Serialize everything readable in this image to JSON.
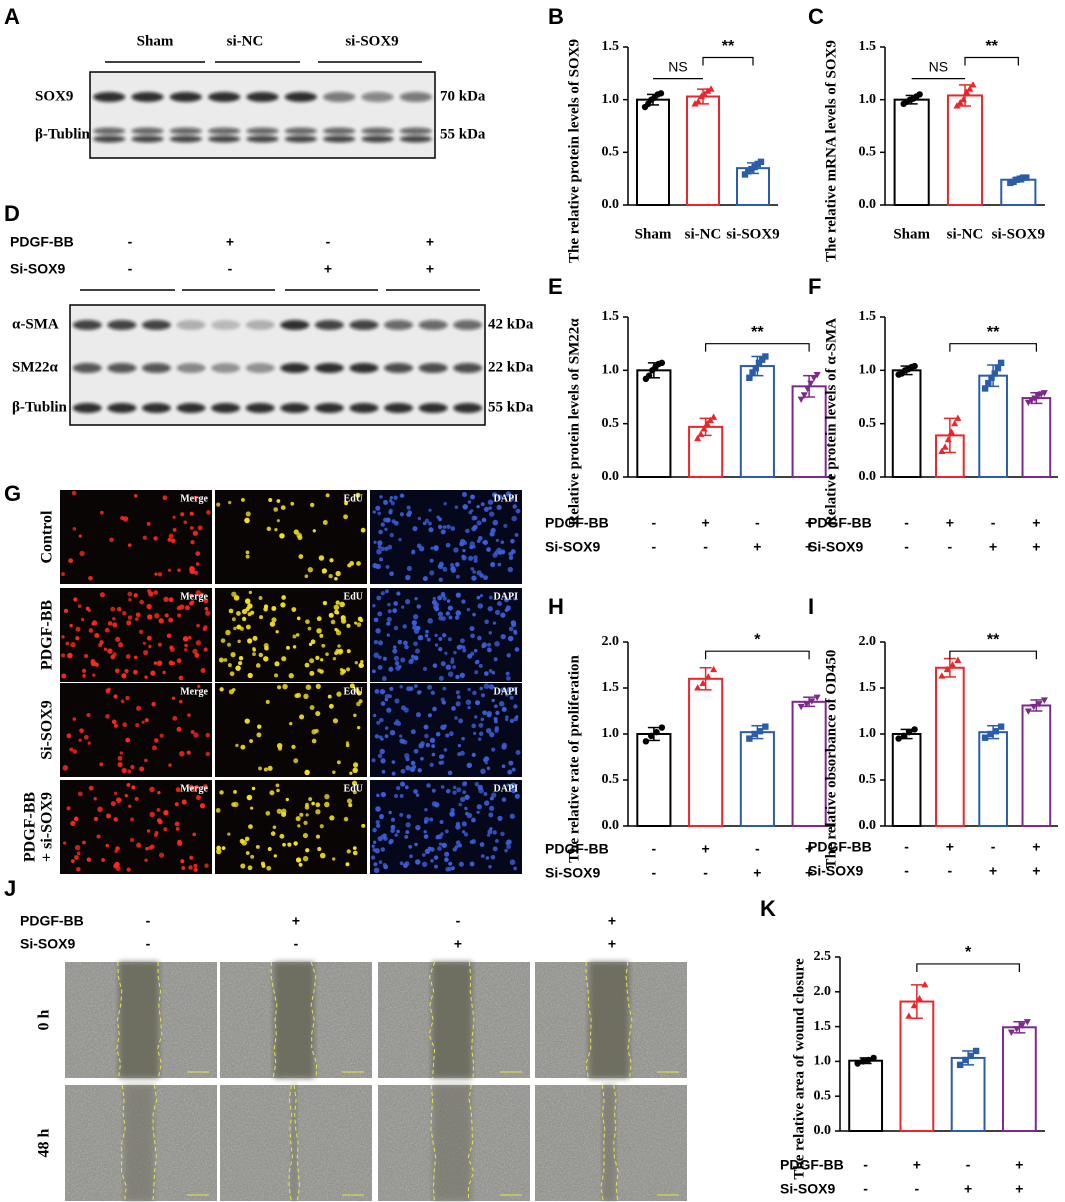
{
  "figure": {
    "panel_A": {
      "letter": "A",
      "groups": [
        "Sham",
        "si-NC",
        "si-SOX9"
      ],
      "rows": [
        {
          "label": "SOX9",
          "size": "70 kDa"
        },
        {
          "label": "β-Tublin",
          "size": "55 kDa"
        }
      ]
    },
    "panel_D": {
      "letter": "D",
      "conditions": [
        {
          "name": "PDGF-BB",
          "marks": [
            "-",
            "+",
            "-",
            "+"
          ]
        },
        {
          "name": "Si-SOX9",
          "marks": [
            "-",
            "-",
            "+",
            "+"
          ]
        }
      ],
      "rows": [
        {
          "label": "α-SMA",
          "size": "42 kDa"
        },
        {
          "label": "SM22α",
          "size": "22 kDa"
        },
        {
          "label": "β-Tublin",
          "size": "55 kDa"
        }
      ]
    },
    "panel_G": {
      "letter": "G",
      "columns": [
        "Merge",
        "EdU",
        "DAPI"
      ],
      "rows": [
        [
          "Control"
        ],
        [
          "PDGF-BB"
        ],
        [
          "Si-SOX9"
        ],
        [
          "PDGF-BB",
          "+ si-SOX9"
        ]
      ]
    },
    "panel_J": {
      "letter": "J",
      "conditions": [
        {
          "name": "PDGF-BB",
          "marks": [
            "-",
            "+",
            "-",
            "+"
          ]
        },
        {
          "name": "Si-SOX9",
          "marks": [
            "-",
            "-",
            "+",
            "+"
          ]
        }
      ],
      "rows": [
        "0 h",
        "48 h"
      ]
    }
  },
  "chart_data": [
    {
      "type": "bar",
      "letter": "B",
      "ylabel": "The relative protein levels of SOX9",
      "categories": [
        "Sham",
        "si-NC",
        "si-SOX9"
      ],
      "colors": [
        "#000000",
        "#e8262b",
        "#2a5caa"
      ],
      "values": [
        1.0,
        1.03,
        0.35
      ],
      "errors": [
        0.05,
        0.07,
        0.05
      ],
      "points": [
        [
          0.93,
          0.96,
          1.0,
          1.02,
          1.05,
          1.06
        ],
        [
          0.96,
          0.98,
          1.03,
          1.05,
          1.08,
          1.1
        ],
        [
          0.29,
          0.32,
          0.34,
          0.36,
          0.39,
          0.41
        ]
      ],
      "ylim": [
        0,
        1.5
      ],
      "yticks": [
        {
          "value": 0,
          "label": "0.0"
        },
        0.5,
        {
          "value": 1,
          "label": "1.0"
        },
        1.5
      ],
      "annotations": [
        "NS",
        "**"
      ]
    },
    {
      "type": "bar",
      "letter": "C",
      "ylabel": "The relative mRNA levels of SOX9",
      "categories": [
        "Sham",
        "si-NC",
        "si-SOX9"
      ],
      "colors": [
        "#000000",
        "#e8262b",
        "#2a5caa"
      ],
      "values": [
        1.0,
        1.04,
        0.24
      ],
      "errors": [
        0.04,
        0.1,
        0.02
      ],
      "points": [
        [
          0.96,
          0.98,
          1.0,
          1.01,
          1.03,
          1.05
        ],
        [
          0.94,
          0.97,
          1.0,
          1.07,
          1.1,
          1.14
        ],
        [
          0.21,
          0.22,
          0.24,
          0.25,
          0.26,
          0.26
        ]
      ],
      "ylim": [
        0,
        1.5
      ],
      "yticks": [
        {
          "value": 0,
          "label": "0.0"
        },
        0.5,
        {
          "value": 1,
          "label": "1.0"
        },
        1.5
      ],
      "annotations": [
        "NS",
        "**"
      ]
    },
    {
      "type": "bar",
      "letter": "E",
      "ylabel": "Relative protein levels of SM22α",
      "categories": [
        null,
        null,
        null,
        null
      ],
      "colors": [
        "#000000",
        "#e8262b",
        "#2a5caa",
        "#7b2a8c"
      ],
      "conditions": [
        {
          "name": "PDGF-BB",
          "marks": [
            "-",
            "+",
            "-",
            "+"
          ]
        },
        {
          "name": "Si-SOX9",
          "marks": [
            "-",
            "-",
            "+",
            "+"
          ]
        }
      ],
      "values": [
        1.0,
        0.47,
        1.04,
        0.85
      ],
      "errors": [
        0.07,
        0.08,
        0.09,
        0.1
      ],
      "points": [
        [
          0.92,
          0.95,
          1.0,
          1.03,
          1.06,
          1.07
        ],
        [
          0.36,
          0.4,
          0.45,
          0.5,
          0.53,
          0.56
        ],
        [
          0.93,
          0.98,
          1.02,
          1.07,
          1.1,
          1.13
        ],
        [
          0.73,
          0.77,
          0.83,
          0.88,
          0.93,
          0.96
        ]
      ],
      "ylim": [
        0,
        1.5
      ],
      "yticks": [
        {
          "value": 0,
          "label": "0.0"
        },
        0.5,
        {
          "value": 1,
          "label": "1.0"
        },
        1.5
      ],
      "annotations": [
        "**"
      ]
    },
    {
      "type": "bar",
      "letter": "F",
      "ylabel": "Relative protein levels of α-SMA",
      "categories": [
        null,
        null,
        null,
        null
      ],
      "colors": [
        "#000000",
        "#e8262b",
        "#2a5caa",
        "#7b2a8c"
      ],
      "conditions": [
        {
          "name": "PDGF-BB",
          "marks": [
            "-",
            "+",
            "-",
            "+"
          ]
        },
        {
          "name": "Si-SOX9",
          "marks": [
            "-",
            "-",
            "+",
            "+"
          ]
        }
      ],
      "values": [
        1.0,
        0.39,
        0.95,
        0.74
      ],
      "errors": [
        0.04,
        0.16,
        0.1,
        0.05
      ],
      "points": [
        [
          0.96,
          0.97,
          1.0,
          1.01,
          1.03,
          1.04
        ],
        [
          0.24,
          0.28,
          0.35,
          0.42,
          0.5,
          0.55
        ],
        [
          0.83,
          0.88,
          0.93,
          0.97,
          1.02,
          1.07
        ],
        [
          0.7,
          0.72,
          0.74,
          0.76,
          0.78,
          0.79
        ]
      ],
      "ylim": [
        0,
        1.5
      ],
      "yticks": [
        {
          "value": 0,
          "label": "0.0"
        },
        0.5,
        {
          "value": 1,
          "label": "1.0"
        },
        1.5
      ],
      "annotations": [
        "**"
      ]
    },
    {
      "type": "bar",
      "letter": "H",
      "ylabel": "The relative rate of proliferation",
      "categories": [
        null,
        null,
        null,
        null
      ],
      "colors": [
        "#000000",
        "#e8262b",
        "#2a5caa",
        "#7b2a8c"
      ],
      "conditions": [
        {
          "name": "PDGF-BB",
          "marks": [
            "-",
            "+",
            "-",
            "+"
          ]
        },
        {
          "name": "Si-SOX9",
          "marks": [
            "-",
            "-",
            "+",
            "+"
          ]
        }
      ],
      "values": [
        1.0,
        1.6,
        1.02,
        1.35
      ],
      "errors": [
        0.07,
        0.12,
        0.07,
        0.05
      ],
      "points": [
        [
          0.92,
          0.98,
          1.02,
          1.07
        ],
        [
          1.5,
          1.55,
          1.62,
          1.7
        ],
        [
          0.95,
          1.0,
          1.03,
          1.08
        ],
        [
          1.3,
          1.33,
          1.36,
          1.4
        ]
      ],
      "ylim": [
        0,
        2
      ],
      "yticks": [
        {
          "value": 0,
          "label": "0.0"
        },
        0.5,
        {
          "value": 1,
          "label": "1.0"
        },
        1.5,
        {
          "value": 2,
          "label": "2.0"
        }
      ],
      "annotations": [
        "*"
      ]
    },
    {
      "type": "bar",
      "letter": "I",
      "ylabel": "The relative obsorbance of OD450",
      "categories": [
        null,
        null,
        null,
        null
      ],
      "colors": [
        "#000000",
        "#e8262b",
        "#2a5caa",
        "#7b2a8c"
      ],
      "conditions": [
        {
          "name": "PDGF-BB",
          "marks": [
            "-",
            "+",
            "-",
            "+"
          ]
        },
        {
          "name": "Si-SOX9",
          "marks": [
            "-",
            "-",
            "+",
            "+"
          ]
        }
      ],
      "values": [
        1.0,
        1.72,
        1.02,
        1.31
      ],
      "errors": [
        0.05,
        0.1,
        0.07,
        0.06
      ],
      "points": [
        [
          0.95,
          0.98,
          1.02,
          1.05
        ],
        [
          1.63,
          1.7,
          1.75,
          1.8
        ],
        [
          0.96,
          1.0,
          1.03,
          1.08
        ],
        [
          1.25,
          1.3,
          1.33,
          1.37
        ]
      ],
      "ylim": [
        0,
        2
      ],
      "yticks": [
        {
          "value": 0,
          "label": "0.0"
        },
        0.5,
        {
          "value": 1,
          "label": "1.0"
        },
        1.5,
        {
          "value": 2,
          "label": "2.0"
        }
      ],
      "annotations": [
        "**"
      ]
    },
    {
      "type": "bar",
      "letter": "K",
      "ylabel": "The relative area of wound closure",
      "categories": [
        null,
        null,
        null,
        null
      ],
      "colors": [
        "#000000",
        "#e8262b",
        "#2a5caa",
        "#7b2a8c"
      ],
      "conditions": [
        {
          "name": "PDGF-BB",
          "marks": [
            "-",
            "+",
            "-",
            "+"
          ]
        },
        {
          "name": "Si-SOX9",
          "marks": [
            "-",
            "-",
            "+",
            "+"
          ]
        }
      ],
      "values": [
        1.01,
        1.86,
        1.05,
        1.49
      ],
      "errors": [
        0.04,
        0.24,
        0.1,
        0.08
      ],
      "points": [
        [
          0.97,
          1.0,
          1.02,
          1.05
        ],
        [
          1.65,
          1.8,
          1.9,
          2.1
        ],
        [
          0.95,
          1.02,
          1.08,
          1.15
        ],
        [
          1.42,
          1.47,
          1.52,
          1.57
        ]
      ],
      "ylim": [
        0,
        2.5
      ],
      "yticks": [
        {
          "value": 0,
          "label": "0.0"
        },
        0.5,
        {
          "value": 1,
          "label": "1.0"
        },
        1.5,
        {
          "value": 2,
          "label": "2.0"
        },
        2.5
      ],
      "annotations": [
        "*"
      ]
    }
  ]
}
